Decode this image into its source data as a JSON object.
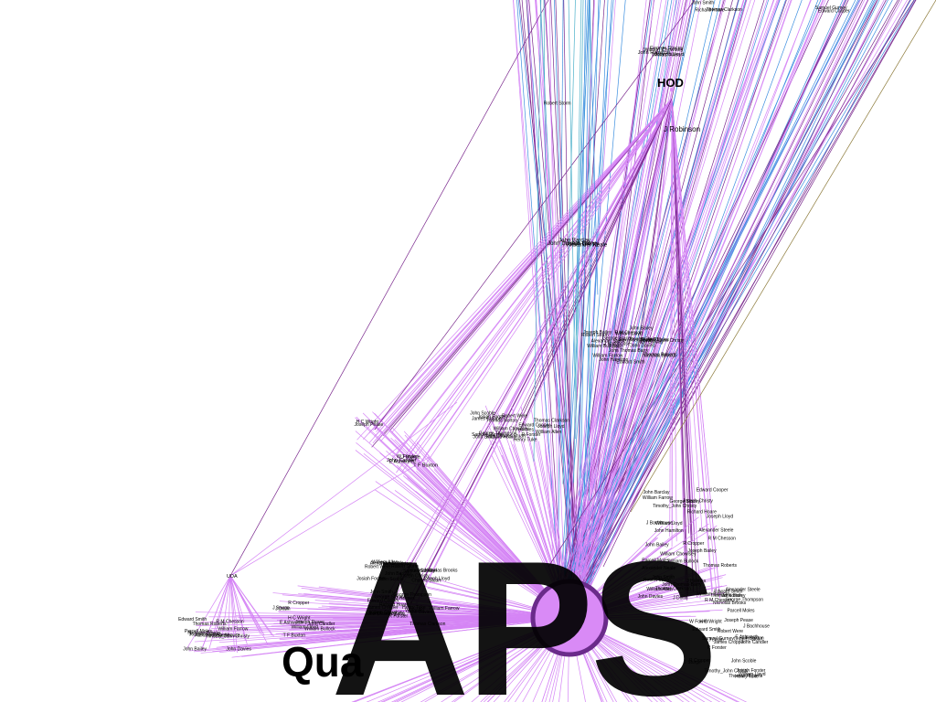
{
  "graph": {
    "hubs": {
      "aps": {
        "label": "APS"
      },
      "quaker": {
        "label": "Qua"
      },
      "hod": {
        "label": "HOD"
      },
      "robinson": {
        "label": "J Robinson"
      },
      "uda": {
        "label": "UDA"
      }
    },
    "labels": [
      "William Lloyd",
      "J Dollin",
      "William Bullock",
      "John Bailey",
      "Alexander Steele",
      "R M Chesson",
      "Parcell Moles",
      "Edward Smith",
      "Thomas Roberts",
      "Timothy_John Christy",
      "J Bachhouse",
      "William Farrow",
      "Joseph Bailey",
      "Nicholas Brooks",
      "John Davies",
      "Robert Storm",
      "Joseph Christy",
      "John Thomas Barry",
      "John Barclay",
      "Alexander Neale",
      "George Stacey",
      "John Hamilton",
      "William Chowlsey",
      "Joseph Lloyd",
      "William Allen",
      "Thomas Clarkson",
      "John Smith",
      "Richard Hoare",
      "Edward Cooper",
      "Samuel Gurney",
      "Henry Tuke",
      "J Holmes",
      "R Forster",
      "James Cropper",
      "Thomas Norton",
      "Charles Stuart",
      "Robert Were",
      "Josiah Forster",
      "George Thompson",
      "John Scoble",
      "W Fowler",
      "E Ashworth",
      "T F Buxton",
      "J Sturge",
      "John Candler",
      "Joseph Pease",
      "H C Wright",
      "R Cropper"
    ],
    "colors": {
      "pink_edge": "#d585f5",
      "blue_edge": "#3d8fe0",
      "purple_edge": "#7b2a8e",
      "olive_edge": "#8c7a3a",
      "hub_fill": "#d98af6",
      "hub_ring": "#6a2b8a"
    }
  }
}
